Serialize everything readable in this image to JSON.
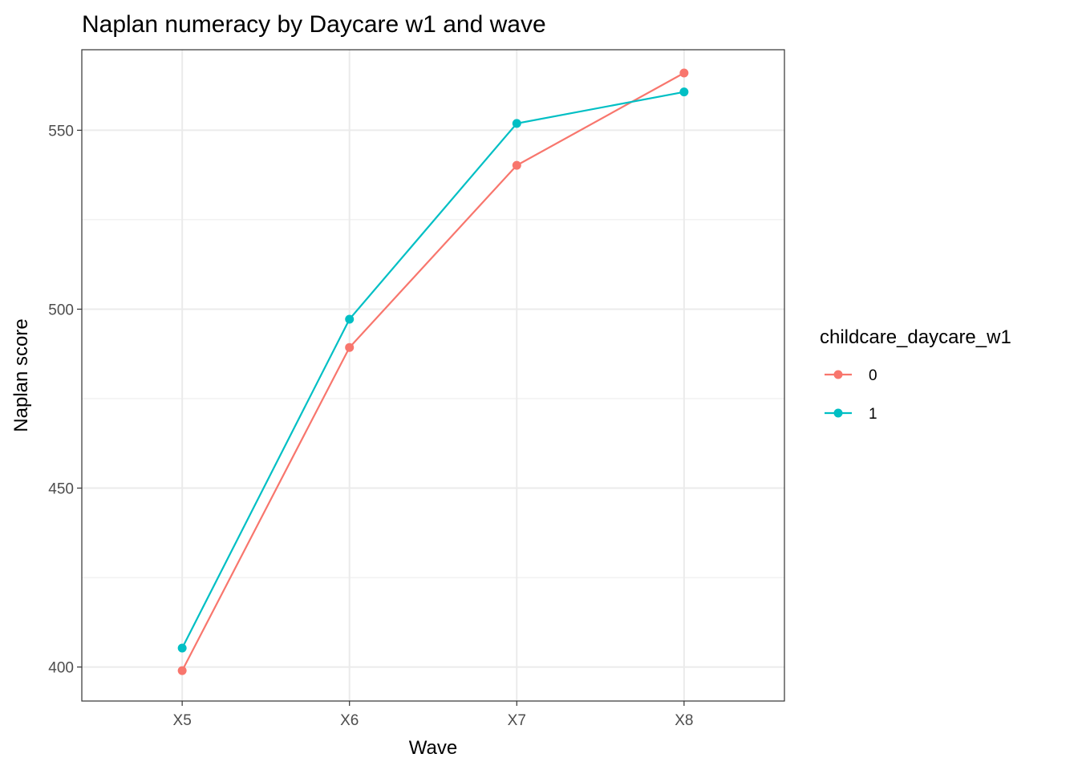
{
  "chart_data": {
    "type": "line",
    "title": "Naplan numeracy by Daycare w1 and wave",
    "xlabel": "Wave",
    "ylabel": "Naplan score",
    "categories": [
      "X5",
      "X6",
      "X7",
      "X8"
    ],
    "ylim": [
      390.5,
      572.5
    ],
    "yticks": [
      400,
      450,
      500,
      550
    ],
    "y_minor_ticks": [
      425,
      475,
      525
    ],
    "grid": true,
    "legend": {
      "title": "childcare_daycare_w1",
      "placement": "right"
    },
    "series": [
      {
        "name": "0",
        "color": "#F8766D",
        "values": [
          399.0,
          489.3,
          540.2,
          566.0
        ]
      },
      {
        "name": "1",
        "color": "#00BFC4",
        "values": [
          405.3,
          497.2,
          551.9,
          560.7
        ]
      }
    ]
  }
}
